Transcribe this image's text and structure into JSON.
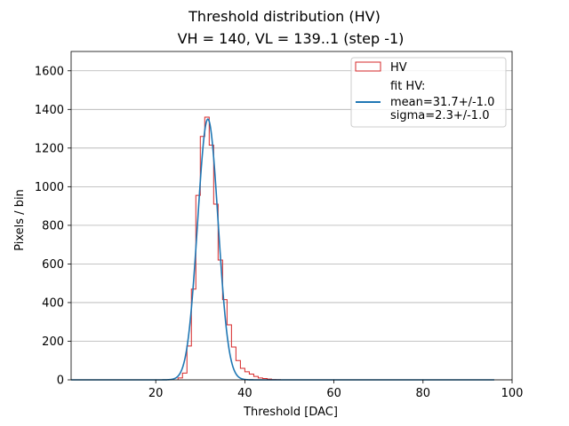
{
  "chart_data": {
    "type": "histogram",
    "title": "Threshold distribution (HV)",
    "subtitle": "VH = 140, VL = 139..1 (step -1)",
    "xlabel": "Threshold [DAC]",
    "ylabel": "Pixels / bin",
    "xlim": [
      1,
      100
    ],
    "ylim": [
      0,
      1700
    ],
    "xticks": [
      20,
      40,
      60,
      80,
      100
    ],
    "yticks": [
      0,
      200,
      400,
      600,
      800,
      1000,
      1200,
      1400,
      1600
    ],
    "grid": "y-major",
    "legend_position": "top-right",
    "series": [
      {
        "name": "HV",
        "kind": "step",
        "color": "#d62728",
        "bin_edges": [
          25,
          26,
          27,
          28,
          29,
          30,
          31,
          32,
          33,
          34,
          35,
          36,
          37,
          38,
          39,
          40,
          41,
          42,
          43,
          44,
          45,
          46,
          47,
          48
        ],
        "counts": [
          10,
          35,
          175,
          470,
          955,
          1260,
          1360,
          1215,
          910,
          620,
          415,
          285,
          170,
          100,
          60,
          42,
          30,
          18,
          10,
          7,
          4,
          2,
          1
        ]
      },
      {
        "name": "fit HV:\nmean=31.7+/-1.0\nsigma=2.3+/-1.0",
        "legend_lines": [
          "fit HV:",
          "mean=31.7+/-1.0",
          "sigma=2.3+/-1.0"
        ],
        "kind": "gaussian",
        "color": "#1f77b4",
        "amplitude": 1350,
        "mean": 31.7,
        "sigma": 2.3,
        "x_range": [
          1,
          96
        ]
      }
    ]
  }
}
